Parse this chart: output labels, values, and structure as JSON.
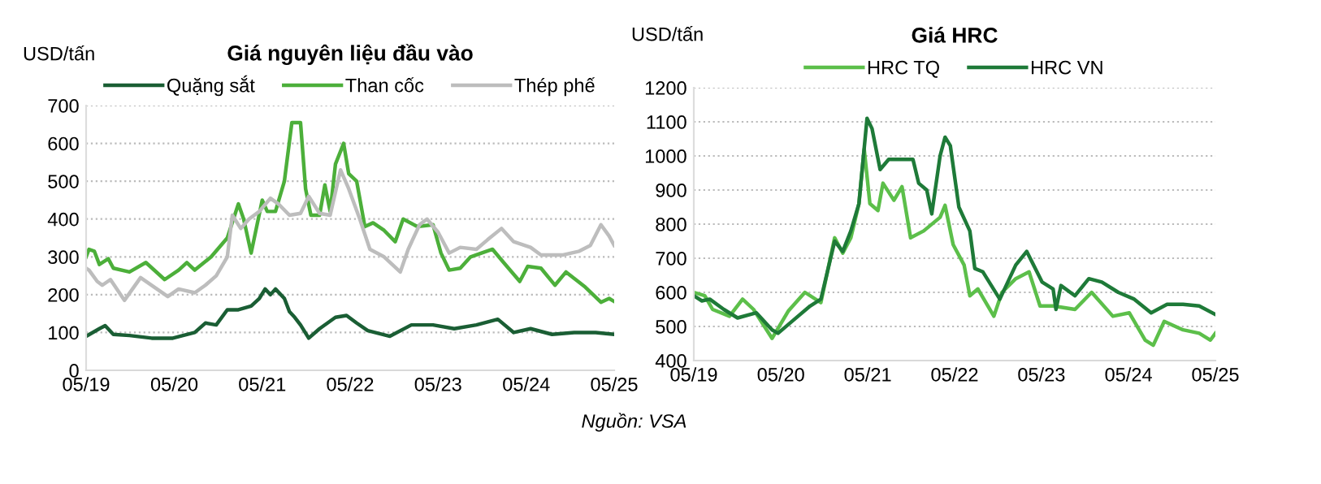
{
  "chart_data": [
    {
      "type": "line",
      "title": "Giá nguyên liệu đầu vào",
      "ylabel": "USD/tấn",
      "xlim": [
        "2019-05-01",
        "2025-05-01"
      ],
      "xticks": [
        {
          "value": "2019-05",
          "label": "05/19"
        },
        {
          "value": "2020-05",
          "label": "05/20"
        },
        {
          "value": "2021-05",
          "label": "05/21"
        },
        {
          "value": "2022-05",
          "label": "05/22"
        },
        {
          "value": "2023-05",
          "label": "05/23"
        },
        {
          "value": "2024-05",
          "label": "05/24"
        },
        {
          "value": "2025-05",
          "label": "05/25"
        }
      ],
      "ylim": [
        0,
        700
      ],
      "yticks": [
        0,
        100,
        200,
        300,
        400,
        500,
        600,
        700
      ],
      "grid": "y",
      "legend": "top",
      "marker": "none",
      "line_style": "solid",
      "annotations": [
        "Nguồn: VSA"
      ],
      "series": [
        {
          "name": "Quặng sắt",
          "color": "#1a5e34",
          "x": [
            "2019-05-01",
            "2019-06-25",
            "2019-07-19",
            "2019-08-22",
            "2019-10-28",
            "2020-01-28",
            "2020-04-25",
            "2020-07-25",
            "2020-09-07",
            "2020-10-22",
            "2020-12-07",
            "2021-01-22",
            "2021-03-16",
            "2021-04-19",
            "2021-05-13",
            "2021-06-04",
            "2021-06-25",
            "2021-08-01",
            "2021-08-22",
            "2021-09-13",
            "2021-10-07",
            "2021-11-10",
            "2021-12-25",
            "2022-03-01",
            "2022-04-16",
            "2022-05-28",
            "2022-07-13",
            "2022-10-13",
            "2023-01-10",
            "2023-04-10",
            "2023-07-07",
            "2023-10-07",
            "2024-01-04",
            "2024-03-10",
            "2024-05-19",
            "2024-08-16",
            "2024-11-16",
            "2025-02-13",
            "2025-05-01"
          ],
          "values": [
            90,
            110,
            118,
            95,
            92,
            85,
            85,
            100,
            125,
            120,
            160,
            160,
            170,
            190,
            215,
            200,
            215,
            190,
            155,
            140,
            120,
            85,
            110,
            140,
            145,
            125,
            105,
            90,
            120,
            120,
            110,
            120,
            135,
            100,
            110,
            95,
            100,
            100,
            95
          ]
        },
        {
          "name": "Than cốc",
          "color": "#4caf3a",
          "x": [
            "2019-05-01",
            "2019-05-13",
            "2019-06-04",
            "2019-06-25",
            "2019-08-01",
            "2019-08-22",
            "2019-10-28",
            "2020-01-04",
            "2020-03-22",
            "2020-05-19",
            "2020-06-22",
            "2020-07-25",
            "2020-10-01",
            "2020-12-07",
            "2021-01-22",
            "2021-02-13",
            "2021-03-16",
            "2021-05-01",
            "2021-05-22",
            "2021-06-25",
            "2021-08-01",
            "2021-09-01",
            "2021-10-07",
            "2021-10-28",
            "2021-11-19",
            "2021-12-25",
            "2022-01-16",
            "2022-02-07",
            "2022-03-01",
            "2022-04-04",
            "2022-04-25",
            "2022-05-28",
            "2022-07-01",
            "2022-08-04",
            "2022-09-19",
            "2022-11-04",
            "2022-12-07",
            "2023-02-04",
            "2023-04-10",
            "2023-05-13",
            "2023-06-16",
            "2023-08-01",
            "2023-09-13",
            "2023-10-28",
            "2023-12-13",
            "2024-01-28",
            "2024-04-04",
            "2024-05-07",
            "2024-07-01",
            "2024-08-28",
            "2024-10-13",
            "2025-01-01",
            "2025-03-07",
            "2025-04-10",
            "2025-05-01"
          ],
          "values": [
            300,
            320,
            315,
            280,
            295,
            270,
            260,
            285,
            240,
            265,
            285,
            265,
            300,
            350,
            440,
            400,
            310,
            450,
            420,
            420,
            500,
            655,
            655,
            480,
            410,
            410,
            490,
            420,
            545,
            600,
            520,
            500,
            380,
            390,
            370,
            340,
            400,
            380,
            385,
            310,
            265,
            270,
            300,
            310,
            320,
            285,
            235,
            275,
            270,
            225,
            260,
            220,
            180,
            190,
            182
          ]
        },
        {
          "name": "Thép phế",
          "color": "#bdbdbd",
          "x": [
            "2019-05-01",
            "2019-05-13",
            "2019-06-16",
            "2019-07-07",
            "2019-08-10",
            "2019-10-07",
            "2019-12-13",
            "2020-02-19",
            "2020-04-04",
            "2020-05-19",
            "2020-07-25",
            "2020-09-07",
            "2020-10-22",
            "2020-12-07",
            "2020-12-28",
            "2021-02-01",
            "2021-03-07",
            "2021-04-19",
            "2021-06-04",
            "2021-07-07",
            "2021-08-22",
            "2021-10-07",
            "2021-11-10",
            "2021-12-25",
            "2022-02-07",
            "2022-03-22",
            "2022-04-25",
            "2022-06-10",
            "2022-07-22",
            "2022-09-19",
            "2022-11-25",
            "2022-12-28",
            "2023-02-13",
            "2023-03-16",
            "2023-05-01",
            "2023-06-16",
            "2023-08-01",
            "2023-10-07",
            "2023-11-22",
            "2024-01-19",
            "2024-03-10",
            "2024-05-19",
            "2024-07-01",
            "2024-10-01",
            "2024-12-07",
            "2025-01-22",
            "2025-03-07",
            "2025-04-10",
            "2025-05-01"
          ],
          "values": [
            270,
            265,
            235,
            225,
            240,
            185,
            245,
            215,
            195,
            215,
            205,
            225,
            250,
            300,
            410,
            375,
            400,
            420,
            455,
            440,
            410,
            415,
            460,
            415,
            410,
            530,
            480,
            400,
            320,
            300,
            260,
            320,
            385,
            400,
            365,
            310,
            325,
            320,
            345,
            375,
            340,
            325,
            305,
            305,
            315,
            330,
            385,
            355,
            330
          ]
        }
      ]
    },
    {
      "type": "line",
      "title": "Giá HRC",
      "ylabel": "USD/tấn",
      "xlim": [
        "2019-05-01",
        "2025-05-01"
      ],
      "xticks": [
        {
          "value": "2019-05",
          "label": "05/19"
        },
        {
          "value": "2020-05",
          "label": "05/20"
        },
        {
          "value": "2021-05",
          "label": "05/21"
        },
        {
          "value": "2022-05",
          "label": "05/22"
        },
        {
          "value": "2023-05",
          "label": "05/23"
        },
        {
          "value": "2024-05",
          "label": "05/24"
        },
        {
          "value": "2025-05",
          "label": "05/25"
        }
      ],
      "ylim": [
        400,
        1200
      ],
      "yticks": [
        400,
        500,
        600,
        700,
        800,
        900,
        1000,
        1100,
        1200
      ],
      "grid": "y",
      "legend": "top",
      "marker": "none",
      "line_style": "solid",
      "series": [
        {
          "name": "HRC TQ",
          "color": "#5cbf4a",
          "x": [
            "2019-05-01",
            "2019-06-16",
            "2019-07-19",
            "2019-09-28",
            "2019-11-22",
            "2020-01-07",
            "2020-03-25",
            "2020-06-01",
            "2020-08-10",
            "2020-10-16",
            "2020-12-13",
            "2021-01-16",
            "2021-02-19",
            "2021-03-25",
            "2021-04-16",
            "2021-05-10",
            "2021-06-13",
            "2021-07-04",
            "2021-08-19",
            "2021-09-22",
            "2021-10-28",
            "2021-12-22",
            "2022-03-01",
            "2022-03-22",
            "2022-04-25",
            "2022-06-10",
            "2022-07-04",
            "2022-08-07",
            "2022-10-13",
            "2022-11-16",
            "2023-01-13",
            "2023-03-10",
            "2023-04-25",
            "2023-06-19",
            "2023-09-19",
            "2023-11-28",
            "2024-02-25",
            "2024-05-04",
            "2024-07-10",
            "2024-08-13",
            "2024-09-28",
            "2024-12-16",
            "2025-02-22",
            "2025-04-10",
            "2025-05-01"
          ],
          "values": [
            600,
            590,
            550,
            530,
            580,
            550,
            465,
            545,
            600,
            570,
            760,
            715,
            760,
            860,
            1020,
            860,
            840,
            920,
            870,
            910,
            760,
            780,
            820,
            855,
            740,
            680,
            590,
            610,
            530,
            600,
            640,
            660,
            560,
            560,
            550,
            600,
            530,
            540,
            460,
            445,
            515,
            490,
            480,
            460,
            480
          ]
        },
        {
          "name": "HRC VN",
          "color": "#1e7a38",
          "x": [
            "2019-05-01",
            "2019-06-04",
            "2019-07-07",
            "2019-09-04",
            "2019-11-01",
            "2020-01-19",
            "2020-03-25",
            "2020-04-19",
            "2020-06-25",
            "2020-09-01",
            "2020-10-16",
            "2020-12-13",
            "2021-01-16",
            "2021-02-19",
            "2021-03-25",
            "2021-04-28",
            "2021-05-19",
            "2021-06-22",
            "2021-07-28",
            "2021-09-22",
            "2021-11-07",
            "2021-12-01",
            "2022-01-04",
            "2022-01-25",
            "2022-03-01",
            "2022-03-22",
            "2022-04-13",
            "2022-05-19",
            "2022-07-04",
            "2022-07-25",
            "2022-08-28",
            "2022-11-07",
            "2023-01-13",
            "2023-02-28",
            "2023-05-04",
            "2023-06-19",
            "2023-07-01",
            "2023-07-22",
            "2023-09-19",
            "2023-11-16",
            "2024-01-10",
            "2024-03-19",
            "2024-05-25",
            "2024-08-04",
            "2024-10-10",
            "2024-12-16",
            "2025-02-22",
            "2025-05-01"
          ],
          "values": [
            590,
            575,
            580,
            550,
            525,
            540,
            490,
            480,
            520,
            560,
            580,
            750,
            720,
            780,
            860,
            1110,
            1080,
            960,
            990,
            990,
            990,
            920,
            900,
            830,
            1000,
            1055,
            1030,
            850,
            780,
            670,
            660,
            580,
            680,
            720,
            630,
            610,
            550,
            620,
            590,
            640,
            630,
            600,
            580,
            540,
            565,
            565,
            560,
            535
          ]
        }
      ]
    }
  ]
}
